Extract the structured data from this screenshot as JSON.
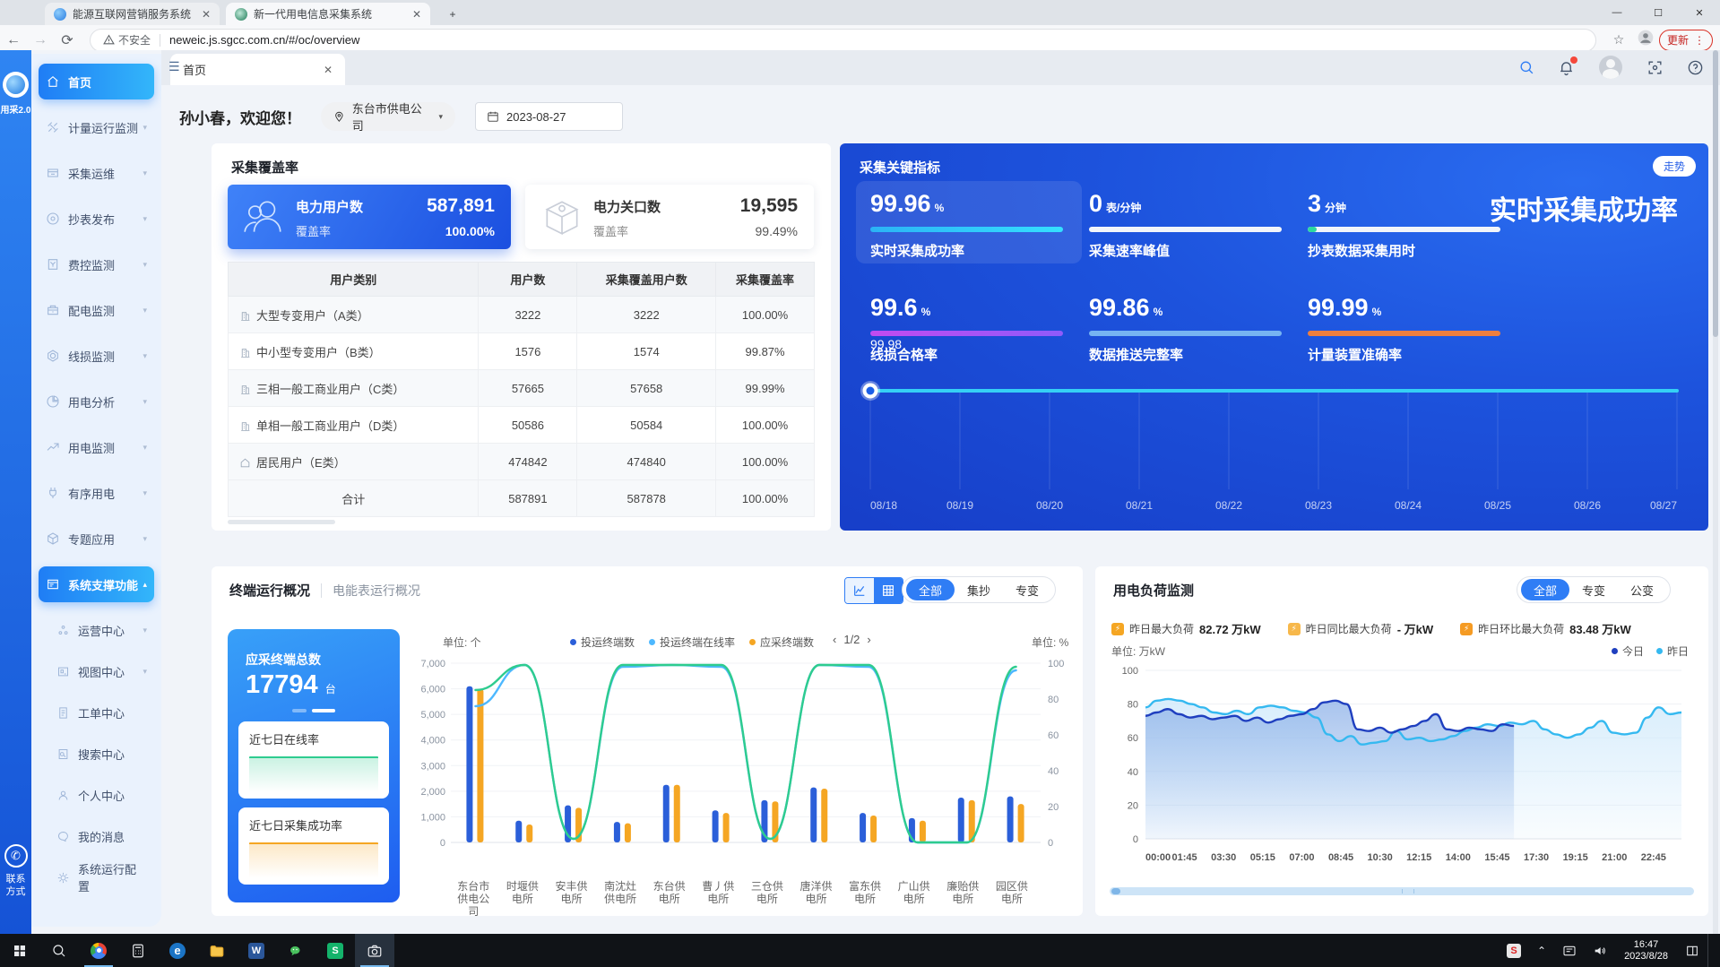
{
  "browser": {
    "tabs": [
      {
        "title": "能源互联网营销服务系统",
        "active": false
      },
      {
        "title": "新一代用电信息采集系统",
        "active": true
      }
    ],
    "new_tab_icon": "+",
    "window_controls": {
      "minimize": "—",
      "maximize": "☐",
      "close": "✕"
    },
    "nav": {
      "back": "←",
      "forward": "→",
      "reload": "⟳"
    },
    "security_label": "不安全",
    "url": "neweic.js.sgcc.com.cn/#/oc/overview",
    "bookmark_icon": "☆",
    "update_button": "更新",
    "menu_dots": "⋮"
  },
  "rail": {
    "logo_text": "用采2.0",
    "contact_line1": "联系",
    "contact_line2": "方式",
    "phone_icon": "✆"
  },
  "sidebar": {
    "items": [
      {
        "label": "首页",
        "icon": "home",
        "active": true,
        "sub": false,
        "chevron": ""
      },
      {
        "label": "计量运行监测",
        "icon": "meter",
        "sub": false,
        "chevron": "▾"
      },
      {
        "label": "采集运维",
        "icon": "collect",
        "sub": false,
        "chevron": "▾"
      },
      {
        "label": "抄表发布",
        "icon": "disc",
        "sub": false,
        "chevron": "▾"
      },
      {
        "label": "费控监测",
        "icon": "fee",
        "sub": false,
        "chevron": "▾"
      },
      {
        "label": "配电监测",
        "icon": "dist",
        "sub": false,
        "chevron": "▾"
      },
      {
        "label": "线损监测",
        "icon": "loss",
        "sub": false,
        "chevron": "▾"
      },
      {
        "label": "用电分析",
        "icon": "pie",
        "sub": false,
        "chevron": "▾"
      },
      {
        "label": "用电监测",
        "icon": "watch",
        "sub": false,
        "chevron": "▾"
      },
      {
        "label": "有序用电",
        "icon": "plug",
        "sub": false,
        "chevron": "▾"
      },
      {
        "label": "专题应用",
        "icon": "cube",
        "sub": false,
        "chevron": "▾"
      },
      {
        "label": "系统支撑功能",
        "icon": "panel",
        "active": true,
        "sub": false,
        "chevron": "▴"
      },
      {
        "label": "运营中心",
        "icon": "org",
        "sub": true,
        "chevron": "▾"
      },
      {
        "label": "视图中心",
        "icon": "view",
        "sub": true,
        "chevron": "▾"
      },
      {
        "label": "工单中心",
        "icon": "doc",
        "sub": true,
        "chevron": ""
      },
      {
        "label": "搜索中心",
        "icon": "searchc",
        "sub": true,
        "chevron": ""
      },
      {
        "label": "个人中心",
        "icon": "person",
        "sub": true,
        "chevron": ""
      },
      {
        "label": "我的消息",
        "icon": "chat",
        "sub": true,
        "chevron": ""
      },
      {
        "label": "系统运行配置",
        "icon": "gear",
        "sub": true,
        "chevron": ""
      }
    ]
  },
  "app_header": {
    "page_tab": "首页",
    "close_icon": "✕",
    "collapse_icon": "☰"
  },
  "welcome": {
    "greeting": "孙小春，欢迎您！",
    "org": "东台市供电公司",
    "org_caret": "▾",
    "date": "2023-08-27"
  },
  "coverage": {
    "title": "采集覆盖率",
    "cards": [
      {
        "name": "电力用户数",
        "value": "587,891",
        "rate_label": "覆盖率",
        "rate": "100.00%",
        "icon": "users"
      },
      {
        "name": "电力关口数",
        "value": "19,595",
        "rate_label": "覆盖率",
        "rate": "99.49%",
        "icon": "gateway-box"
      }
    ],
    "table": {
      "headers": [
        "用户类别",
        "用户数",
        "采集覆盖用户数",
        "采集覆盖率"
      ],
      "rows": [
        {
          "icon": "building",
          "cells": [
            "大型专变用户（A类）",
            "3222",
            "3222",
            "100.00%"
          ]
        },
        {
          "icon": "building",
          "cells": [
            "中小型专变用户（B类）",
            "1576",
            "1574",
            "99.87%"
          ]
        },
        {
          "icon": "building",
          "cells": [
            "三相一般工商业用户（C类）",
            "57665",
            "57658",
            "99.99%"
          ]
        },
        {
          "icon": "building",
          "cells": [
            "单相一般工商业用户（D类）",
            "50586",
            "50584",
            "100.00%"
          ]
        },
        {
          "icon": "house",
          "cells": [
            "居民用户（E类）",
            "474842",
            "474840",
            "100.00%"
          ]
        },
        {
          "icon": "",
          "cells": [
            "合计",
            "587891",
            "587878",
            "100.00%"
          ]
        }
      ]
    }
  },
  "kpi": {
    "title": "采集关键指标",
    "trend_badge": "走势",
    "big_title": "实时采集成功率",
    "items": [
      {
        "value": "99.96",
        "unit": "%",
        "label": "实时采集成功率",
        "bar": "linear-gradient(90deg,#2bb3f5,#35e0ff)",
        "highlight": true
      },
      {
        "value": "0",
        "unit": "表/分钟",
        "label": "采集速率峰值",
        "bar": "#f2f5fa"
      },
      {
        "value": "3",
        "unit": "分钟",
        "label": "抄表数据采集用时",
        "bar": "#f2f5fa",
        "tip": "#2bd99f"
      },
      {
        "value": "99.6",
        "unit": "%",
        "label": "线损合格率",
        "bar": "linear-gradient(90deg,#c24bf0,#8f5bfa)"
      },
      {
        "value": "99.86",
        "unit": "%",
        "label": "数据推送完整率",
        "bar": "#76b4f2"
      },
      {
        "value": "99.99",
        "unit": "%",
        "label": "计量装置准确率",
        "bar": "#ee7f3e"
      }
    ],
    "chart_data": {
      "type": "line",
      "title": "实时采集成功率走势",
      "x": [
        "08/18",
        "08/19",
        "08/20",
        "08/21",
        "08/22",
        "08/23",
        "08/24",
        "08/25",
        "08/26",
        "08/27"
      ],
      "values": [
        99.98,
        99.98,
        99.98,
        99.98,
        99.98,
        99.98,
        99.98,
        99.98,
        99.98,
        99.98
      ],
      "point_label": "99.98",
      "ylim": [
        0,
        100
      ],
      "line_color": "#35d0f5"
    }
  },
  "terminal": {
    "title": "终端运行概况",
    "title2": "电能表运行概况",
    "segments": [
      {
        "label": "全部",
        "on": true
      },
      {
        "label": "集抄",
        "on": false
      },
      {
        "label": "专变",
        "on": false
      }
    ],
    "unit_left": "单位: 个",
    "unit_right": "单位: %",
    "pagination": {
      "prev": "‹",
      "page": "1/2",
      "next": "›"
    },
    "total_card": {
      "label": "应采终端总数",
      "value": "17794",
      "unit": "台"
    },
    "mini_cards": [
      {
        "label": "近七日在线率",
        "color": "green"
      },
      {
        "label": "近七日采集成功率",
        "color": "orange"
      }
    ],
    "chart_data": {
      "type": "bar+line",
      "categories": [
        "东台市供电公司",
        "时堰供电所",
        "安丰供电所",
        "南沈灶供电所",
        "东台供电所",
        "曹丿供电所",
        "三仓供电所",
        "唐洋供电所",
        "富东供电所",
        "广山供电所",
        "廉贻供电所",
        "园区供电所"
      ],
      "series": [
        {
          "name": "投运终端数",
          "type": "bar",
          "color": "#2b5fd9",
          "values": [
            6100,
            850,
            1450,
            800,
            2250,
            1250,
            1650,
            2150,
            1150,
            950,
            1750,
            1800
          ]
        },
        {
          "name": "应采终端数",
          "type": "bar",
          "color": "#f5a623",
          "values": [
            6000,
            700,
            1350,
            750,
            2250,
            1150,
            1600,
            2100,
            1050,
            850,
            1650,
            1500
          ]
        },
        {
          "name": "投运终端在线率",
          "type": "line",
          "color": "#4db8ff",
          "values": [
            76,
            99,
            2,
            98,
            99,
            98,
            2,
            99,
            98,
            0,
            0,
            96
          ]
        },
        {
          "name": "line_green",
          "type": "line",
          "color": "#2ecc8f",
          "values": [
            85,
            99,
            2,
            99,
            99,
            99,
            2,
            99,
            99,
            0,
            0,
            98
          ]
        }
      ],
      "ylim_left": [
        0,
        7000
      ],
      "yticks_left": [
        "0",
        "1,000",
        "2,000",
        "3,000",
        "4,000",
        "5,000",
        "6,000",
        "7,000"
      ],
      "ylim_right": [
        0,
        100
      ],
      "yticks_right": [
        "0",
        "20",
        "40",
        "60",
        "80",
        "100"
      ],
      "legend": [
        {
          "name": "投运终端数",
          "color": "#2b5fd9"
        },
        {
          "name": "投运终端在线率",
          "color": "#4db8ff"
        },
        {
          "name": "应采终端数",
          "color": "#f5a623"
        }
      ]
    }
  },
  "load": {
    "title": "用电负荷监测",
    "segments": [
      {
        "label": "全部",
        "on": true
      },
      {
        "label": "专变",
        "on": false
      },
      {
        "label": "公变",
        "on": false
      }
    ],
    "stats": [
      {
        "label": "昨日最大负荷",
        "value": "82.72 万kW",
        "icon_color": "#f5a623"
      },
      {
        "label": "昨日同比最大负荷",
        "value": "- 万kW",
        "icon_color": "#f7b84b"
      },
      {
        "label": "昨日环比最大负荷",
        "value": "83.48 万kW",
        "icon_color": "#f59b23"
      }
    ],
    "unit": "单位: 万kW",
    "legend": [
      {
        "name": "今日",
        "color": "#1f3fbf"
      },
      {
        "name": "昨日",
        "color": "#35b9f0"
      }
    ],
    "chart_data": {
      "type": "line",
      "xticks": [
        "00:00",
        "01:45",
        "03:30",
        "05:15",
        "07:00",
        "08:45",
        "10:30",
        "12:15",
        "14:00",
        "15:45",
        "17:30",
        "19:15",
        "21:00",
        "22:45"
      ],
      "ylim": [
        0,
        100
      ],
      "yticks": [
        "0",
        "20",
        "40",
        "60",
        "80",
        "100"
      ],
      "series": [
        {
          "name": "昨日",
          "color": "#35b9f0",
          "span": 1.0,
          "values": [
            78,
            82,
            83,
            82,
            80,
            78,
            75,
            74,
            76,
            74,
            78,
            79,
            78,
            76,
            75,
            72,
            62,
            58,
            61,
            56,
            57,
            58,
            64,
            59,
            60,
            58,
            59,
            61,
            64,
            66,
            68,
            67,
            69,
            68,
            70,
            65,
            62,
            60,
            62,
            66,
            70,
            63,
            62,
            63,
            72,
            78,
            74,
            75
          ]
        },
        {
          "name": "今日",
          "color": "#1f3fbf",
          "span": 0.6875,
          "values": [
            73,
            75,
            77,
            74,
            72,
            73,
            71,
            72,
            73,
            70,
            72,
            69,
            71,
            73,
            74,
            77,
            81,
            82,
            80,
            65,
            64,
            66,
            63,
            65,
            67,
            70,
            74,
            65,
            64,
            66,
            65,
            64,
            68,
            67
          ]
        }
      ]
    }
  },
  "taskbar": {
    "icons": [
      "start",
      "search",
      "chrome",
      "calculator",
      "edge",
      "explorer",
      "word",
      "wechat",
      "s-green",
      "screenshot-tool"
    ],
    "tray": {
      "s_badge": "S",
      "chevron_up": "⌃",
      "time": "16:47",
      "date": "2023/8/28"
    }
  }
}
